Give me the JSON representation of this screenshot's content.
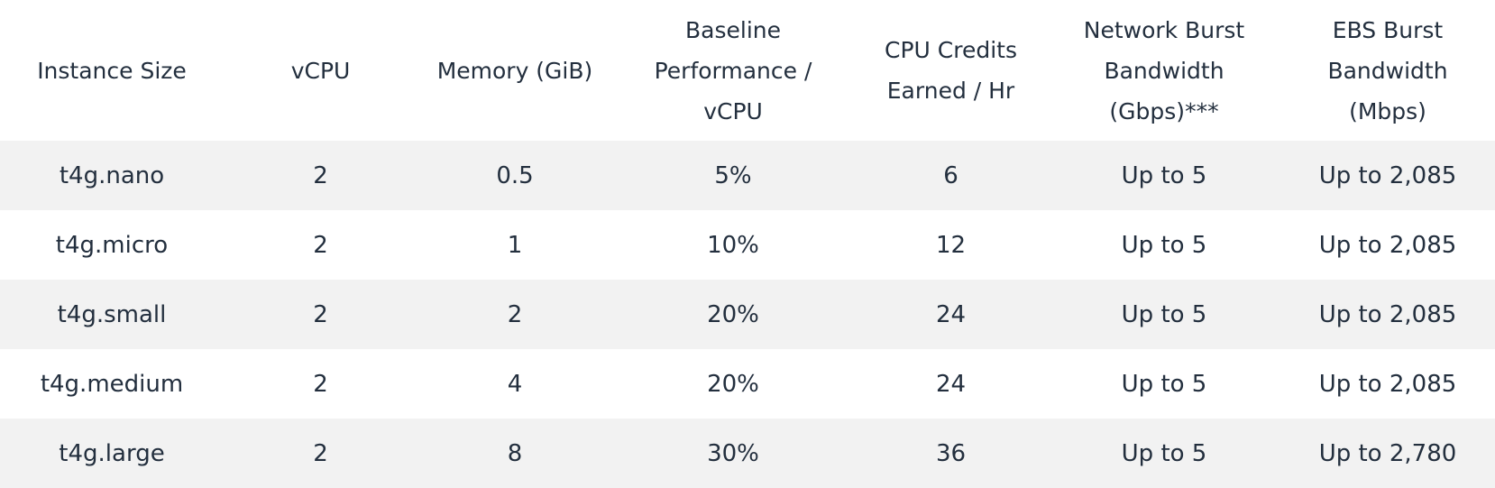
{
  "table": {
    "headers": [
      "Instance Size",
      "vCPU",
      "Memory (GiB)",
      "Baseline Performance / vCPU",
      "CPU Credits Earned / Hr",
      "Network Burst Bandwidth (Gbps)***",
      "EBS Burst Bandwidth (Mbps)"
    ],
    "header_lines": [
      [
        "Instance Size"
      ],
      [
        "vCPU"
      ],
      [
        "Memory (GiB)"
      ],
      [
        "Baseline",
        "Performance /",
        "vCPU"
      ],
      [
        "CPU Credits",
        "Earned / Hr"
      ],
      [
        "Network Burst",
        "Bandwidth",
        "(Gbps)***"
      ],
      [
        "EBS Burst",
        "Bandwidth",
        "(Mbps)"
      ]
    ],
    "rows": [
      [
        "t4g.nano",
        "2",
        "0.5",
        "5%",
        "6",
        "Up to 5",
        "Up to 2,085"
      ],
      [
        "t4g.micro",
        "2",
        "1",
        "10%",
        "12",
        "Up to 5",
        "Up to 2,085"
      ],
      [
        "t4g.small",
        "2",
        "2",
        "20%",
        "24",
        "Up to 5",
        "Up to 2,085"
      ],
      [
        "t4g.medium",
        "2",
        "4",
        "20%",
        "24",
        "Up to 5",
        "Up to 2,085"
      ],
      [
        "t4g.large",
        "2",
        "8",
        "30%",
        "36",
        "Up to 5",
        "Up to 2,780"
      ]
    ]
  },
  "colors": {
    "text": "#232f3e",
    "row_shade": "#f2f2f2",
    "background": "#ffffff"
  }
}
